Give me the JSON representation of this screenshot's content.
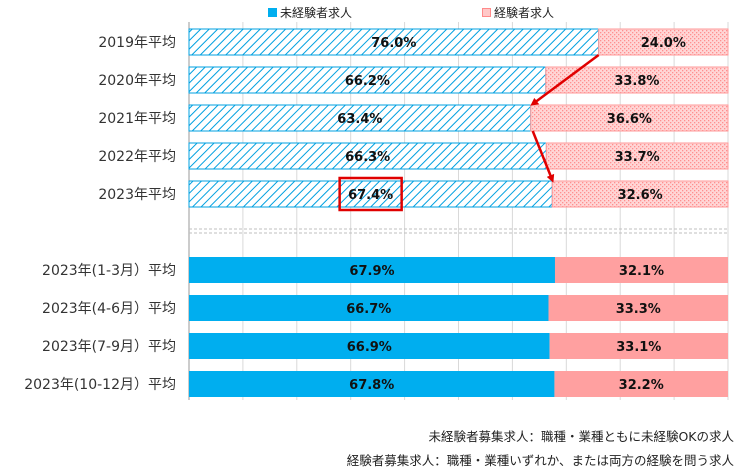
{
  "legend": {
    "inexperienced": "未経験者求人",
    "experienced": "経験者求人"
  },
  "colors": {
    "inexperienced": "#00aeef",
    "experienced": "#ffa0a0",
    "hatch_line": "#00a0e0",
    "highlight": "#e00000",
    "arrow": "#e00000"
  },
  "notes": {
    "line1": "未経験者募集求人：職種・業種ともに未経験OKの求人",
    "line2": "経験者募集求人：職種・業種いずれか、または両方の経験を問う求人"
  },
  "chart_data": {
    "type": "bar",
    "orientation": "horizontal",
    "stacked": true,
    "percent": true,
    "categories": [
      "2019年平均",
      "2020年平均",
      "2021年平均",
      "2022年平均",
      "2023年平均",
      "2023年(1-3月）平均",
      "2023年(4-6月）平均",
      "2023年(7-9月）平均",
      "2023年(10-12月）平均"
    ],
    "series": [
      {
        "name": "未経験者求人",
        "values": [
          76.0,
          66.2,
          63.4,
          66.3,
          67.4,
          67.9,
          66.7,
          66.9,
          67.8
        ]
      },
      {
        "name": "経験者求人",
        "values": [
          24.0,
          33.8,
          36.6,
          33.7,
          32.6,
          32.1,
          33.3,
          33.1,
          32.2
        ]
      }
    ],
    "labels": [
      [
        "76.0%",
        "66.2%",
        "63.4%",
        "66.3%",
        "67.4%",
        "67.9%",
        "66.7%",
        "66.9%",
        "67.8%"
      ],
      [
        "24.0%",
        "33.8%",
        "36.6%",
        "33.7%",
        "32.6%",
        "32.1%",
        "33.3%",
        "33.1%",
        "32.2%"
      ]
    ],
    "hatched_categories": [
      0,
      1,
      2,
      3,
      4
    ],
    "highlighted": {
      "category": 4,
      "series": 0
    },
    "xlim": [
      0,
      100
    ],
    "grid": true
  }
}
